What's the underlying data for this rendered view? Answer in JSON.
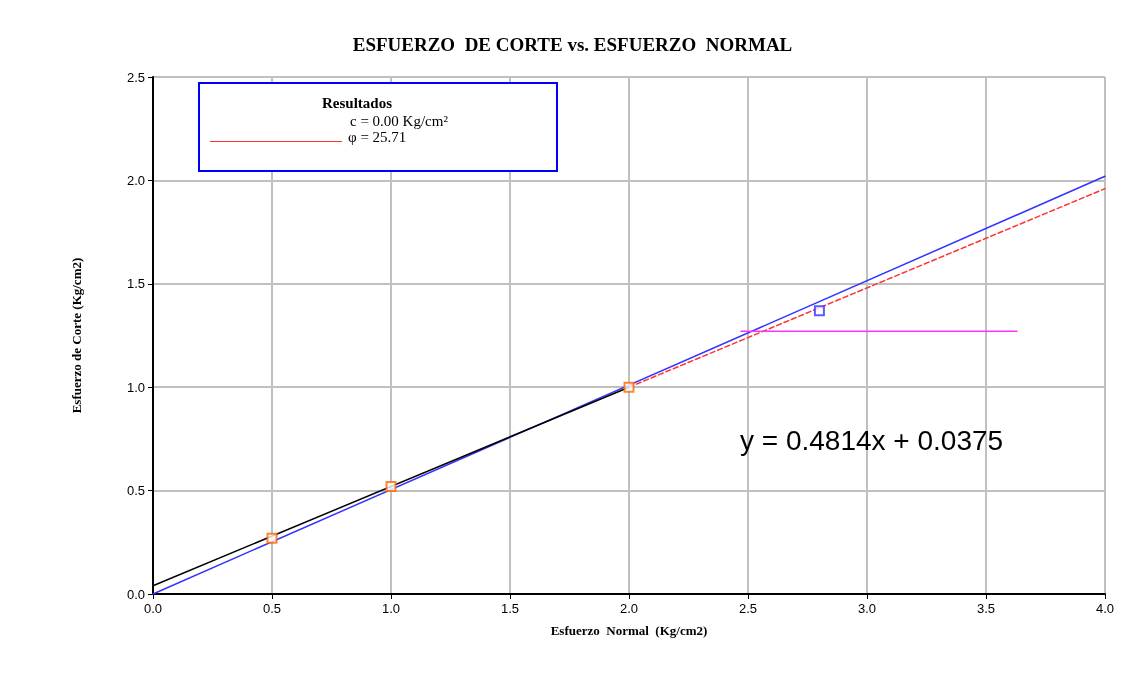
{
  "chart_data": {
    "type": "scatter",
    "title": "ESFUERZO  DE CORTE vs. ESFUERZO  NORMAL",
    "xlabel": "Esfuerzo  Normal  (Kg/cm2)",
    "ylabel": "Esfuerzo de Corte (Kg/cm2)",
    "xlim": [
      0,
      4
    ],
    "ylim": [
      0,
      2.5
    ],
    "xticks": [
      {
        "value": 0,
        "label": "0.0"
      },
      {
        "value": 0.5,
        "label": "0.5"
      },
      {
        "value": 1,
        "label": "1.0"
      },
      {
        "value": 1.5,
        "label": "1.5"
      },
      {
        "value": 2,
        "label": "2.0"
      },
      {
        "value": 2.5,
        "label": "2.5"
      },
      {
        "value": 3,
        "label": "3.0"
      },
      {
        "value": 3.5,
        "label": "3.5"
      },
      {
        "value": 4,
        "label": "4.0"
      }
    ],
    "yticks": [
      {
        "value": 0,
        "label": "0.0"
      },
      {
        "value": 0.5,
        "label": "0.5"
      },
      {
        "value": 1,
        "label": "1.0"
      },
      {
        "value": 1.5,
        "label": "1.5"
      },
      {
        "value": 2,
        "label": "2.0"
      },
      {
        "value": 2.5,
        "label": "2.5"
      }
    ],
    "grid": true,
    "series": [
      {
        "type": "line",
        "color": "#3333ff",
        "x": [
          0,
          4
        ],
        "values": [
          0,
          2.02
        ],
        "marker": "none",
        "line_style": "solid"
      },
      {
        "type": "line",
        "color": "#ff3333",
        "x": [
          2,
          4
        ],
        "values": [
          1.0,
          1.96
        ],
        "marker": "none",
        "line_style": "dashed"
      },
      {
        "type": "line",
        "color": "#000000",
        "x": [
          0,
          2
        ],
        "values": [
          0.04,
          1.0
        ],
        "marker": "none",
        "line_style": "solid"
      },
      {
        "type": "line",
        "color": "#ff33ff",
        "x": [
          2.47,
          3.63
        ],
        "values": [
          1.27,
          1.27
        ],
        "marker": "none",
        "line_style": "solid"
      },
      {
        "color": "#ff6600",
        "x": [
          0.5,
          1,
          2
        ],
        "values": [
          0.27,
          0.52,
          1.0
        ],
        "marker": "square"
      },
      {
        "color": "#3333ff",
        "x": [
          2.8
        ],
        "values": [
          1.37
        ],
        "marker": "square"
      }
    ],
    "annotations": [
      "Resultados",
      "c = 0.00 Kg/cm²",
      "φ = 25.71",
      "y = 0.4814x + 0.0375"
    ]
  }
}
